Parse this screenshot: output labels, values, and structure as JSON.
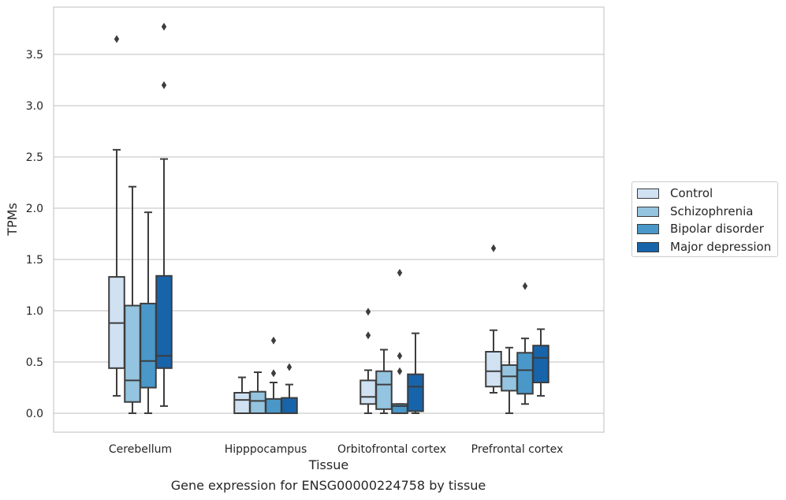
{
  "chart_data": {
    "type": "box",
    "xlabel": "Tissue",
    "ylabel": "TPMs",
    "caption": "Gene expression for ENSG00000224758 by tissue",
    "ylim": [
      -0.18,
      3.98
    ],
    "yticks": [
      0.0,
      0.5,
      1.0,
      1.5,
      2.0,
      2.5,
      3.0,
      3.5
    ],
    "ytick_labels": [
      "0.0",
      "0.5",
      "1.0",
      "1.5",
      "2.0",
      "2.5",
      "3.0",
      "3.5"
    ],
    "grid": "horizontal",
    "legend_position": "right",
    "categories": [
      "Cerebellum",
      "Hipppocampus",
      "Orbitofrontal cortex",
      "Prefrontal cortex"
    ],
    "series": [
      {
        "name": "Control",
        "color": "#d0e1f2",
        "boxes": [
          {
            "whisker_low": 0.17,
            "q1": 0.44,
            "median": 0.88,
            "q3": 1.33,
            "whisker_high": 2.57,
            "outliers": [
              3.65
            ]
          },
          {
            "whisker_low": 0.0,
            "q1": 0.0,
            "median": 0.13,
            "q3": 0.2,
            "whisker_high": 0.35,
            "outliers": []
          },
          {
            "whisker_low": 0.0,
            "q1": 0.09,
            "median": 0.16,
            "q3": 0.32,
            "whisker_high": 0.42,
            "outliers": [
              0.76,
              0.99
            ]
          },
          {
            "whisker_low": 0.2,
            "q1": 0.26,
            "median": 0.41,
            "q3": 0.6,
            "whisker_high": 0.81,
            "outliers": [
              1.61
            ]
          }
        ]
      },
      {
        "name": "Schizophrenia",
        "color": "#94c4df",
        "boxes": [
          {
            "whisker_low": 0.0,
            "q1": 0.11,
            "median": 0.32,
            "q3": 1.05,
            "whisker_high": 2.21,
            "outliers": []
          },
          {
            "whisker_low": 0.0,
            "q1": 0.0,
            "median": 0.12,
            "q3": 0.21,
            "whisker_high": 0.4,
            "outliers": []
          },
          {
            "whisker_low": 0.0,
            "q1": 0.04,
            "median": 0.28,
            "q3": 0.41,
            "whisker_high": 0.62,
            "outliers": []
          },
          {
            "whisker_low": 0.0,
            "q1": 0.22,
            "median": 0.36,
            "q3": 0.47,
            "whisker_high": 0.64,
            "outliers": []
          }
        ]
      },
      {
        "name": "Bipolar disorder",
        "color": "#4a98c9",
        "boxes": [
          {
            "whisker_low": 0.0,
            "q1": 0.25,
            "median": 0.51,
            "q3": 1.07,
            "whisker_high": 1.96,
            "outliers": []
          },
          {
            "whisker_low": 0.0,
            "q1": 0.0,
            "median": 0.0,
            "q3": 0.14,
            "whisker_high": 0.3,
            "outliers": [
              0.39,
              0.71
            ]
          },
          {
            "whisker_low": 0.0,
            "q1": 0.0,
            "median": 0.07,
            "q3": 0.09,
            "whisker_high": 0.09,
            "outliers": [
              0.41,
              0.56,
              1.37
            ]
          },
          {
            "whisker_low": 0.09,
            "q1": 0.19,
            "median": 0.42,
            "q3": 0.59,
            "whisker_high": 0.73,
            "outliers": [
              1.24
            ]
          }
        ]
      },
      {
        "name": "Major depression",
        "color": "#1764ab",
        "boxes": [
          {
            "whisker_low": 0.07,
            "q1": 0.44,
            "median": 0.56,
            "q3": 1.34,
            "whisker_high": 2.48,
            "outliers": [
              3.2,
              3.77
            ]
          },
          {
            "whisker_low": 0.0,
            "q1": 0.0,
            "median": 0.0,
            "q3": 0.15,
            "whisker_high": 0.28,
            "outliers": [
              0.45
            ]
          },
          {
            "whisker_low": 0.0,
            "q1": 0.02,
            "median": 0.26,
            "q3": 0.38,
            "whisker_high": 0.78,
            "outliers": []
          },
          {
            "whisker_low": 0.17,
            "q1": 0.3,
            "median": 0.54,
            "q3": 0.66,
            "whisker_high": 0.82,
            "outliers": []
          }
        ]
      }
    ]
  }
}
